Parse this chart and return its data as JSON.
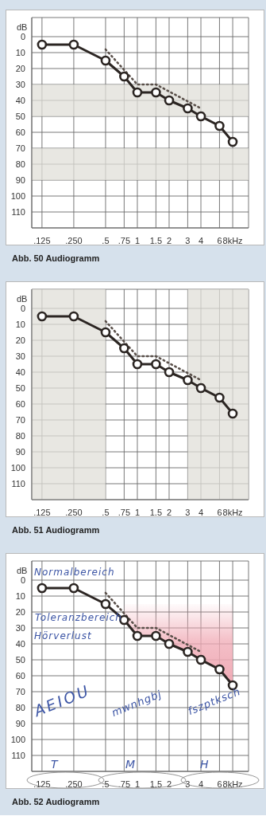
{
  "chart_data": [
    {
      "type": "line",
      "title": "Abb. 50 Audiogramm",
      "ylabel": "dB",
      "log": "x",
      "grid": true,
      "legend": false,
      "marker": "circle",
      "line_style": "solid",
      "xlim": [
        0.1,
        11.3
      ],
      "ylim": [
        120,
        -12
      ],
      "xticks": [
        {
          "value": 0.125,
          "label": ".125"
        },
        {
          "value": 0.25,
          "label": ".250"
        },
        {
          "value": 0.5,
          "label": ".5"
        },
        {
          "value": 0.75,
          "label": ".75"
        },
        1,
        1.5,
        2,
        3,
        4,
        6,
        {
          "value": 8,
          "label": "8kHz"
        }
      ],
      "yticks": [
        0,
        10,
        20,
        30,
        40,
        50,
        60,
        70,
        80,
        90,
        100,
        110
      ],
      "bands": [
        {
          "axis": "y",
          "from": 30,
          "to": 50,
          "color": "#e0dfd8"
        },
        {
          "axis": "y",
          "from": 70,
          "to": 90,
          "color": "#e0dfd8"
        }
      ],
      "series": [
        {
          "color": "#2b2522",
          "x": [
            0.125,
            0.25,
            0.5,
            0.75,
            1,
            1.5,
            2,
            3,
            4,
            6,
            8
          ],
          "values": [
            5,
            5,
            15,
            25,
            35,
            35,
            40,
            45,
            50,
            56,
            66
          ]
        },
        {
          "color": "#5a504a",
          "x": [
            0.5,
            1,
            1.5,
            4
          ],
          "values": [
            8,
            30,
            30,
            45
          ],
          "marker": "none",
          "line_style": "dotted"
        }
      ]
    },
    {
      "type": "line",
      "title": "Abb. 51 Audiogramm",
      "ylabel": "dB",
      "log": "x",
      "grid": true,
      "legend": false,
      "marker": "circle",
      "line_style": "solid",
      "xlim": [
        0.1,
        11.3
      ],
      "ylim": [
        120,
        -12
      ],
      "xticks": [
        {
          "value": 0.125,
          "label": ".125"
        },
        {
          "value": 0.25,
          "label": ".250"
        },
        {
          "value": 0.5,
          "label": ".5"
        },
        {
          "value": 0.75,
          "label": ".75"
        },
        1,
        1.5,
        2,
        3,
        4,
        6,
        {
          "value": 8,
          "label": "8kHz"
        }
      ],
      "yticks": [
        0,
        10,
        20,
        30,
        40,
        50,
        60,
        70,
        80,
        90,
        100,
        110
      ],
      "bands": [
        {
          "axis": "x",
          "from": 0.1,
          "to": 0.5,
          "color": "#e0dfd8"
        },
        {
          "axis": "x",
          "from": 3,
          "to": 11.3,
          "color": "#e0dfd8"
        }
      ],
      "series": [
        {
          "color": "#2b2522",
          "x": [
            0.125,
            0.25,
            0.5,
            0.75,
            1,
            1.5,
            2,
            3,
            4,
            6,
            8
          ],
          "values": [
            5,
            5,
            15,
            25,
            35,
            35,
            40,
            45,
            50,
            56,
            66
          ]
        },
        {
          "color": "#5a504a",
          "x": [
            0.5,
            1,
            1.5,
            4
          ],
          "values": [
            8,
            30,
            30,
            45
          ],
          "marker": "none",
          "line_style": "dotted"
        }
      ]
    },
    {
      "type": "line",
      "title": "Abb. 52 Audiogramm",
      "ylabel": "dB",
      "log": "x",
      "grid": true,
      "legend": false,
      "marker": "circle",
      "line_style": "solid",
      "xlim": [
        0.1,
        11.3
      ],
      "ylim": [
        120,
        -12
      ],
      "xticks": [
        {
          "value": 0.125,
          "label": ".125"
        },
        {
          "value": 0.25,
          "label": ".250"
        },
        {
          "value": 0.5,
          "label": ".5"
        },
        {
          "value": 0.75,
          "label": ".75"
        },
        1,
        1.5,
        2,
        3,
        4,
        6,
        {
          "value": 8,
          "label": "8kHz"
        }
      ],
      "yticks": [
        0,
        10,
        20,
        30,
        40,
        50,
        60,
        70,
        80,
        90,
        100,
        110
      ],
      "annotations": [
        "Normalbereich",
        "Toleranzbereich",
        "Hörverlust",
        "AEIOU",
        "mwnhgbj",
        "fszptksch",
        "T",
        "M",
        "H"
      ],
      "series": [
        {
          "color": "#2b2522",
          "x": [
            0.125,
            0.25,
            0.5,
            0.75,
            1,
            1.5,
            2,
            3,
            4,
            6,
            8
          ],
          "values": [
            5,
            5,
            15,
            25,
            35,
            35,
            40,
            45,
            50,
            56,
            66
          ],
          "lower": [
            null,
            null,
            null,
            15,
            15,
            15,
            15,
            15,
            15,
            15,
            15
          ],
          "upper": [
            null,
            null,
            null,
            25,
            35,
            35,
            40,
            45,
            50,
            56,
            66
          ]
        },
        {
          "color": "#5a504a",
          "x": [
            0.5,
            1,
            1.5,
            4
          ],
          "values": [
            8,
            30,
            30,
            45
          ],
          "marker": "none",
          "line_style": "dotted"
        }
      ]
    }
  ]
}
